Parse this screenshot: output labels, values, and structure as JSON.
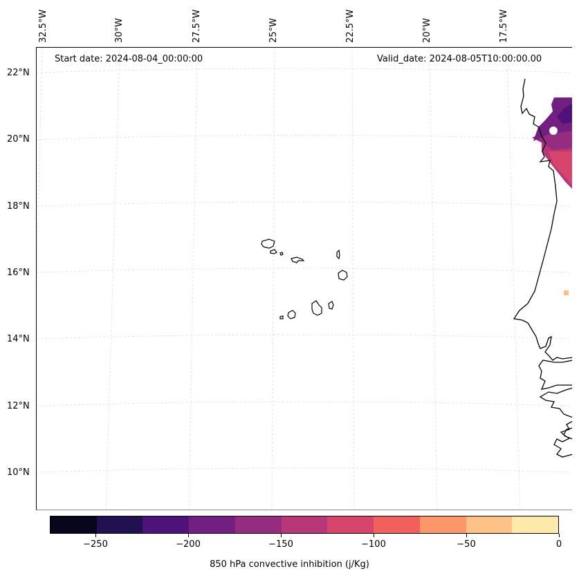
{
  "header": {
    "start_date": "Start date: 2024-08-04_00:00:00",
    "valid_date": "Valid_date: 2024-08-05T10:00:00.00"
  },
  "axes": {
    "lon_labels": [
      "32.5°W",
      "30°W",
      "27.5°W",
      "25°W",
      "22.5°W",
      "20°W",
      "17.5°W"
    ],
    "lat_labels": [
      "22°N",
      "20°N",
      "18°N",
      "16°N",
      "14°N",
      "12°N",
      "10°N"
    ]
  },
  "colorbar": {
    "title": "850 hPa convective inhibition (j/Kg)",
    "ticks": [
      "−250",
      "−200",
      "−150",
      "−100",
      "−50",
      "0"
    ],
    "levels": [
      -275,
      -250,
      -225,
      -200,
      -175,
      -150,
      -125,
      -100,
      -75,
      -50,
      -25,
      0
    ],
    "colors": [
      "#07061c",
      "#221150",
      "#4f127b",
      "#721f81",
      "#952c80",
      "#b73779",
      "#d8456c",
      "#f1605d",
      "#fd9668",
      "#fec287",
      "#fde9a9"
    ]
  },
  "map": {
    "field": "850 hPa convective inhibition",
    "units": "j/Kg",
    "region_features": [
      "Cape Verde islands",
      "West African coastline"
    ]
  }
}
